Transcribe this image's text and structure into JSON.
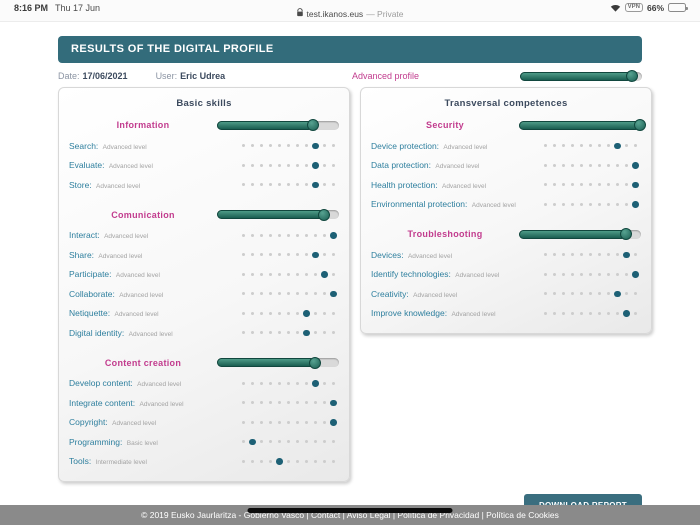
{
  "status_bar": {
    "time": "8:16 PM",
    "date": "Thu 17 Jun",
    "url": "test.ikanos.eus",
    "privacy": "— Private",
    "vpn_label": "VPN",
    "battery_percent": "66%",
    "battery_level": 66,
    "icons": [
      "lock-icon",
      "wifi-icon",
      "battery-icon"
    ]
  },
  "header": {
    "title": "RESULTS OF THE DIGITAL PROFILE"
  },
  "meta": {
    "date_label": "Date:",
    "date_value": "17/06/2021",
    "user_label": "User:",
    "user_value": "Eric Udrea",
    "advanced_profile_label": "Advanced profile",
    "advanced_profile_percent": 92
  },
  "scale": {
    "dots_total": 11
  },
  "panels": [
    {
      "title": "Basic skills",
      "sections": [
        {
          "title": "Information",
          "slider_percent": 79,
          "skills": [
            {
              "name": "Search:",
              "level": "Advanced level",
              "score": 9
            },
            {
              "name": "Evaluate:",
              "level": "Advanced level",
              "score": 9
            },
            {
              "name": "Store:",
              "level": "Advanced level",
              "score": 9
            }
          ]
        },
        {
          "title": "Comunication",
          "slider_percent": 88,
          "skills": [
            {
              "name": "Interact:",
              "level": "Advanced level",
              "score": 11
            },
            {
              "name": "Share:",
              "level": "Advanced level",
              "score": 9
            },
            {
              "name": "Participate:",
              "level": "Advanced level",
              "score": 10
            },
            {
              "name": "Collaborate:",
              "level": "Advanced level",
              "score": 11
            },
            {
              "name": "Netiquette:",
              "level": "Advanced level",
              "score": 8
            },
            {
              "name": "Digital identity:",
              "level": "Advanced level",
              "score": 8
            }
          ]
        },
        {
          "title": "Content creation",
          "slider_percent": 80,
          "skills": [
            {
              "name": "Develop content:",
              "level": "Advanced level",
              "score": 9
            },
            {
              "name": "Integrate content:",
              "level": "Advanced level",
              "score": 11
            },
            {
              "name": "Copyright:",
              "level": "Advanced level",
              "score": 11
            },
            {
              "name": "Programming:",
              "level": "Basic level",
              "score": 2
            },
            {
              "name": "Tools:",
              "level": "Intermediate level",
              "score": 5
            }
          ]
        }
      ]
    },
    {
      "title": "Transversal competences",
      "sections": [
        {
          "title": "Security",
          "slider_percent": 99,
          "skills": [
            {
              "name": "Device protection:",
              "level": "Advanced level",
              "score": 9
            },
            {
              "name": "Data protection:",
              "level": "Advanced level",
              "score": 11
            },
            {
              "name": "Health protection:",
              "level": "Advanced level",
              "score": 11
            },
            {
              "name": "Environmental protection:",
              "level": "Advanced level",
              "score": 11
            }
          ]
        },
        {
          "title": "Troubleshooting",
          "slider_percent": 88,
          "skills": [
            {
              "name": "Devices:",
              "level": "Advanced level",
              "score": 10
            },
            {
              "name": "Identify technologies:",
              "level": "Advanced level",
              "score": 11
            },
            {
              "name": "Creativity:",
              "level": "Advanced level",
              "score": 9
            },
            {
              "name": "Improve knowledge:",
              "level": "Advanced level",
              "score": 10
            }
          ]
        }
      ]
    }
  ],
  "download_button_label": "DOWNLOAD REPORT",
  "footer_text": "© 2019 Eusko Jaurlaritza - Gobierno Vasco | Contact | Aviso Legal | Política de Privacidad | Política de Cookies",
  "colors": {
    "header_teal": "#336c7b",
    "accent_pink": "#c23c8e",
    "skill_blue": "#2e7f9e",
    "slider_teal": "#1a5e51",
    "dot_active": "#1d6075",
    "footer_gray": "#8a8a8a"
  }
}
